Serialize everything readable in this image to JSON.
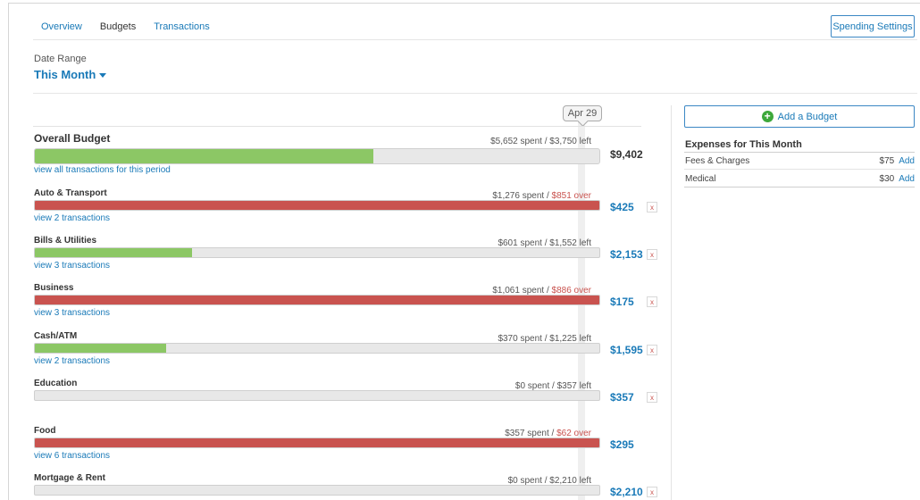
{
  "colors": {
    "accent": "#1a7ab8",
    "under_budget": "#8cc765",
    "over_budget": "#c9534f",
    "track": "#e8e8e8"
  },
  "tabs": [
    {
      "label": "Overview",
      "active": false
    },
    {
      "label": "Budgets",
      "active": true
    },
    {
      "label": "Transactions",
      "active": false
    }
  ],
  "spending_settings_label": "Spending Settings",
  "date_range": {
    "label": "Date Range",
    "value": "This Month"
  },
  "today_marker": "Apr 29",
  "overall": {
    "title": "Overall Budget",
    "spent": "$5,652 spent",
    "remaining": "$3,750 left",
    "fill_fraction": 0.6,
    "link": "view all transactions for this period",
    "amount": "$9,402"
  },
  "budgets": [
    {
      "title": "Auto & Transport",
      "spent": "$1,276 spent",
      "remaining": "$851 over",
      "over": true,
      "fill_fraction": 1.0,
      "link": "view 2 transactions",
      "amount": "$425",
      "delete_label": "x"
    },
    {
      "title": "Bills & Utilities",
      "spent": "$601 spent",
      "remaining": "$1,552 left",
      "over": false,
      "fill_fraction": 0.279,
      "link": "view 3 transactions",
      "amount": "$2,153",
      "delete_label": "x"
    },
    {
      "title": "Business",
      "spent": "$1,061 spent",
      "remaining": "$886 over",
      "over": true,
      "fill_fraction": 1.0,
      "link": "view 3 transactions",
      "amount": "$175",
      "delete_label": "x"
    },
    {
      "title": "Cash/ATM",
      "spent": "$370 spent",
      "remaining": "$1,225 left",
      "over": false,
      "fill_fraction": 0.232,
      "link": "view 2 transactions",
      "amount": "$1,595",
      "delete_label": "x"
    },
    {
      "title": "Education",
      "spent": "$0 spent",
      "remaining": "$357 left",
      "over": false,
      "fill_fraction": 0,
      "link": "",
      "amount": "$357",
      "delete_label": "x"
    },
    {
      "title": "Food",
      "spent": "$357 spent",
      "remaining": "$62 over",
      "over": true,
      "fill_fraction": 1.0,
      "link": "view 6 transactions",
      "amount": "$295",
      "delete_label": ""
    },
    {
      "title": "Mortgage & Rent",
      "spent": "$0 spent",
      "remaining": "$2,210 left",
      "over": false,
      "fill_fraction": 0,
      "link": "",
      "amount": "$2,210",
      "delete_label": "x"
    }
  ],
  "add_budget_label": "Add a Budget",
  "expenses": {
    "title": "Expenses for This Month",
    "items": [
      {
        "name": "Fees & Charges",
        "amount": "$75",
        "action": "Add"
      },
      {
        "name": "Medical",
        "amount": "$30",
        "action": "Add"
      }
    ]
  }
}
